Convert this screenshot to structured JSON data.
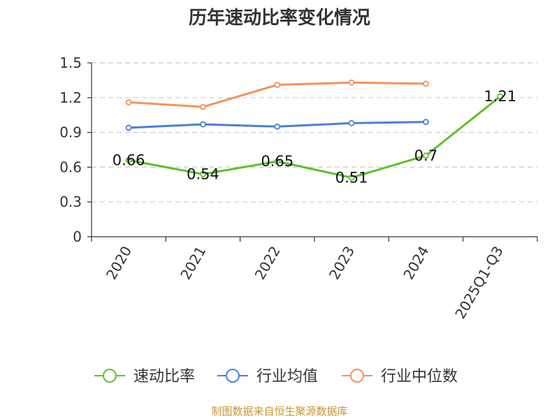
{
  "chart_data": {
    "type": "line",
    "title": "历年速动比率变化情况",
    "categories": [
      "2020",
      "2021",
      "2022",
      "2023",
      "2024",
      "2025Q1-Q3"
    ],
    "ylim": [
      0,
      1.5
    ],
    "yticks": [
      "0",
      "0.3",
      "0.6",
      "0.9",
      "1.2",
      "1.5"
    ],
    "grid": true,
    "legend_position": "bottom",
    "series": [
      {
        "name": "速动比率",
        "color": "#5bc12a",
        "values": [
          0.66,
          0.54,
          0.65,
          0.51,
          0.7,
          1.21
        ],
        "labels": [
          "0.66",
          "0.54",
          "0.65",
          "0.51",
          "0.7",
          "1.21"
        ]
      },
      {
        "name": "行业均值",
        "color": "#4a7fd8",
        "values": [
          0.94,
          0.97,
          0.95,
          0.98,
          0.99,
          null
        ]
      },
      {
        "name": "行业中位数",
        "color": "#f79155",
        "values": [
          1.16,
          1.12,
          1.31,
          1.33,
          1.32,
          null
        ]
      }
    ],
    "source": "制图数据来自恒生聚源数据库",
    "source_color": "#c8962d"
  }
}
